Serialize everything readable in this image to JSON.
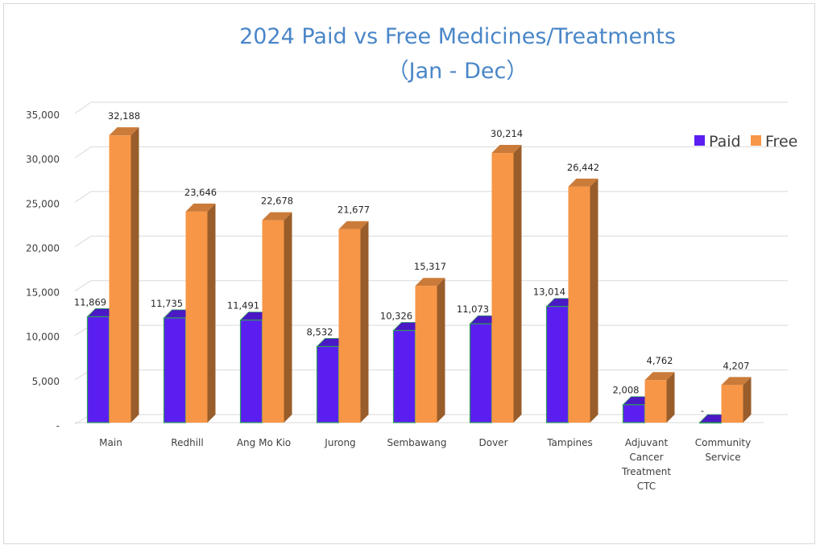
{
  "chart_data": {
    "type": "bar",
    "title": "2024 Paid vs Free Medicines/Treatments",
    "subtitle": "（Jan - Dec）",
    "xlabel": "",
    "ylabel": "",
    "ylim": [
      0,
      35000
    ],
    "y_ticks": [
      {
        "value": 0,
        "label": "-"
      },
      {
        "value": 5000,
        "label": "5,000"
      },
      {
        "value": 10000,
        "label": "10,000"
      },
      {
        "value": 15000,
        "label": "15,000"
      },
      {
        "value": 20000,
        "label": "20,000"
      },
      {
        "value": 25000,
        "label": "25,000"
      },
      {
        "value": 30000,
        "label": "30,000"
      },
      {
        "value": 35000,
        "label": "35,000"
      }
    ],
    "categories": [
      "Main",
      "Redhill",
      "Ang Mo Kio",
      "Jurong",
      "Sembawang",
      "Dover",
      "Tampines",
      "Adjuvant Cancer Treatment CTC",
      "Community Service"
    ],
    "series": [
      {
        "name": "Paid",
        "color": "#5a1ff0",
        "values": [
          11869,
          11735,
          11491,
          8532,
          10326,
          11073,
          13014,
          2008,
          0
        ],
        "labels": [
          "11,869",
          "11,735",
          "11,491",
          "8,532",
          "10,326",
          "11,073",
          "13,014",
          "2,008",
          "-"
        ]
      },
      {
        "name": "Free",
        "color": "#f79646",
        "values": [
          32188,
          23646,
          22678,
          21677,
          15317,
          30214,
          26442,
          4762,
          4207
        ],
        "labels": [
          "32,188",
          "23,646",
          "22,678",
          "21,677",
          "15,317",
          "30,214",
          "26,442",
          "4,762",
          "4,207"
        ]
      }
    ],
    "legend_position": "top-right",
    "grid": true,
    "style": "3d-column"
  }
}
